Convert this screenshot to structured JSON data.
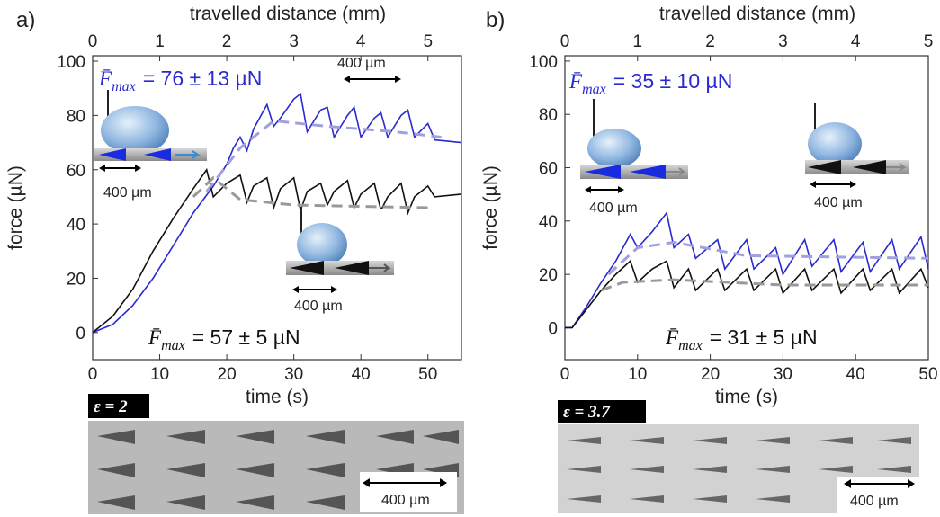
{
  "chart_data": [
    {
      "type": "line",
      "panel_label": "a)",
      "x_label": "time (s)",
      "x2_label": "travelled distance (mm)",
      "y_label": "force (µN)",
      "xlim": [
        0,
        55
      ],
      "xticks": [
        0,
        10,
        20,
        30,
        40,
        50
      ],
      "x2lim": [
        0,
        5.5
      ],
      "x2ticks": [
        0,
        1,
        2,
        3,
        4,
        5
      ],
      "ylim": [
        -10,
        102
      ],
      "yticks": [
        0,
        20,
        40,
        60,
        80,
        100
      ],
      "series": [
        {
          "color": "#2a2ad0",
          "dashed": false,
          "x": [
            0,
            3,
            6,
            9,
            12,
            15,
            18,
            20,
            21,
            22,
            23,
            24,
            26,
            27,
            28,
            30,
            31,
            32,
            34,
            35,
            36,
            38,
            39,
            40,
            42,
            43,
            44,
            46,
            47,
            48,
            50,
            51,
            55
          ],
          "values": [
            0,
            3,
            10,
            20,
            32,
            44,
            54,
            62,
            68,
            72,
            67,
            75,
            84,
            76,
            79,
            86,
            88,
            74,
            82,
            83,
            72,
            80,
            83,
            72,
            79,
            81,
            72,
            80,
            82,
            72,
            77,
            71,
            70
          ]
        },
        {
          "color": "#111111",
          "dashed": false,
          "x": [
            0,
            3,
            6,
            9,
            12,
            15,
            17,
            18,
            20,
            22,
            23,
            24,
            26,
            27,
            28,
            30,
            31,
            32,
            34,
            35,
            36,
            38,
            39,
            40,
            42,
            43,
            44,
            46,
            47,
            48,
            50,
            51,
            55
          ],
          "values": [
            0,
            6,
            16,
            30,
            42,
            53,
            60,
            50,
            55,
            58,
            48,
            54,
            57,
            46,
            53,
            57,
            45,
            52,
            55,
            47,
            52,
            56,
            46,
            51,
            55,
            45,
            50,
            55,
            44,
            50,
            54,
            50,
            51
          ]
        },
        {
          "color": "#a0a0e0",
          "dashed": true,
          "x": [
            17,
            22,
            27,
            35,
            45,
            52
          ],
          "values": [
            52,
            68,
            78,
            76,
            74,
            72
          ]
        },
        {
          "color": "#999999",
          "dashed": true,
          "x": [
            15,
            18,
            22,
            30,
            50
          ],
          "values": [
            50,
            57,
            49,
            47,
            46
          ]
        }
      ],
      "annotations": [
        {
          "symbol": "F̄",
          "sub": "max",
          "text": "= 76 ± 13 µN",
          "color": "#2a2ad0"
        },
        {
          "symbol": "F̄",
          "sub": "max",
          "text": "= 57 ± 5 µN",
          "color": "#111111"
        }
      ],
      "inset_labels": [
        "400 µm",
        "400 µm",
        "400 µm"
      ],
      "image_label": "ε = 2",
      "image_scale_label": "400 µm"
    },
    {
      "type": "line",
      "panel_label": "b)",
      "x_label": "time (s)",
      "x2_label": "travelled distance (mm)",
      "y_label": "force (µN)",
      "xlim": [
        0,
        50
      ],
      "xticks": [
        0,
        10,
        20,
        30,
        40,
        50
      ],
      "x2lim": [
        0,
        5
      ],
      "x2ticks": [
        0,
        1,
        2,
        3,
        4,
        5
      ],
      "ylim": [
        -12,
        102
      ],
      "yticks": [
        0,
        20,
        40,
        60,
        80,
        100
      ],
      "series": [
        {
          "color": "#2a2ad0",
          "dashed": false,
          "x": [
            0,
            1,
            3,
            5,
            7,
            9,
            10,
            12,
            14,
            15,
            17,
            18,
            21,
            22,
            25,
            26,
            29,
            30,
            33,
            34,
            37,
            38,
            41,
            42,
            45,
            46,
            49,
            50
          ],
          "values": [
            0,
            0,
            8,
            17,
            25,
            35,
            30,
            36,
            43,
            30,
            35,
            26,
            33,
            22,
            33,
            22,
            30,
            20,
            33,
            23,
            33,
            21,
            32,
            21,
            33,
            22,
            34,
            22
          ]
        },
        {
          "color": "#111111",
          "dashed": false,
          "x": [
            0,
            1,
            3,
            5,
            7,
            9,
            10,
            12,
            14,
            15,
            17,
            18,
            21,
            22,
            25,
            26,
            29,
            30,
            33,
            34,
            37,
            38,
            41,
            42,
            45,
            46,
            49,
            50
          ],
          "values": [
            0,
            0,
            7,
            14,
            20,
            25,
            17,
            22,
            25,
            15,
            22,
            14,
            22,
            14,
            22,
            14,
            22,
            13,
            22,
            14,
            22,
            13,
            22,
            14,
            22,
            13,
            22,
            15
          ]
        },
        {
          "color": "#a0a0e0",
          "dashed": true,
          "x": [
            6,
            10,
            15,
            25,
            50
          ],
          "values": [
            20,
            30,
            32,
            27,
            26
          ]
        },
        {
          "color": "#999999",
          "dashed": true,
          "x": [
            5,
            8,
            15,
            30,
            50
          ],
          "values": [
            14,
            17,
            18,
            16,
            16
          ]
        }
      ],
      "annotations": [
        {
          "symbol": "F̄",
          "sub": "max",
          "text": "= 35 ± 10 µN",
          "color": "#2a2ad0"
        },
        {
          "symbol": "F̄",
          "sub": "max",
          "text": "= 31 ± 5 µN",
          "color": "#111111"
        }
      ],
      "inset_labels": [
        "400 µm",
        "400 µm"
      ],
      "image_label": "ε = 3.7",
      "image_scale_label": "400 µm"
    }
  ]
}
